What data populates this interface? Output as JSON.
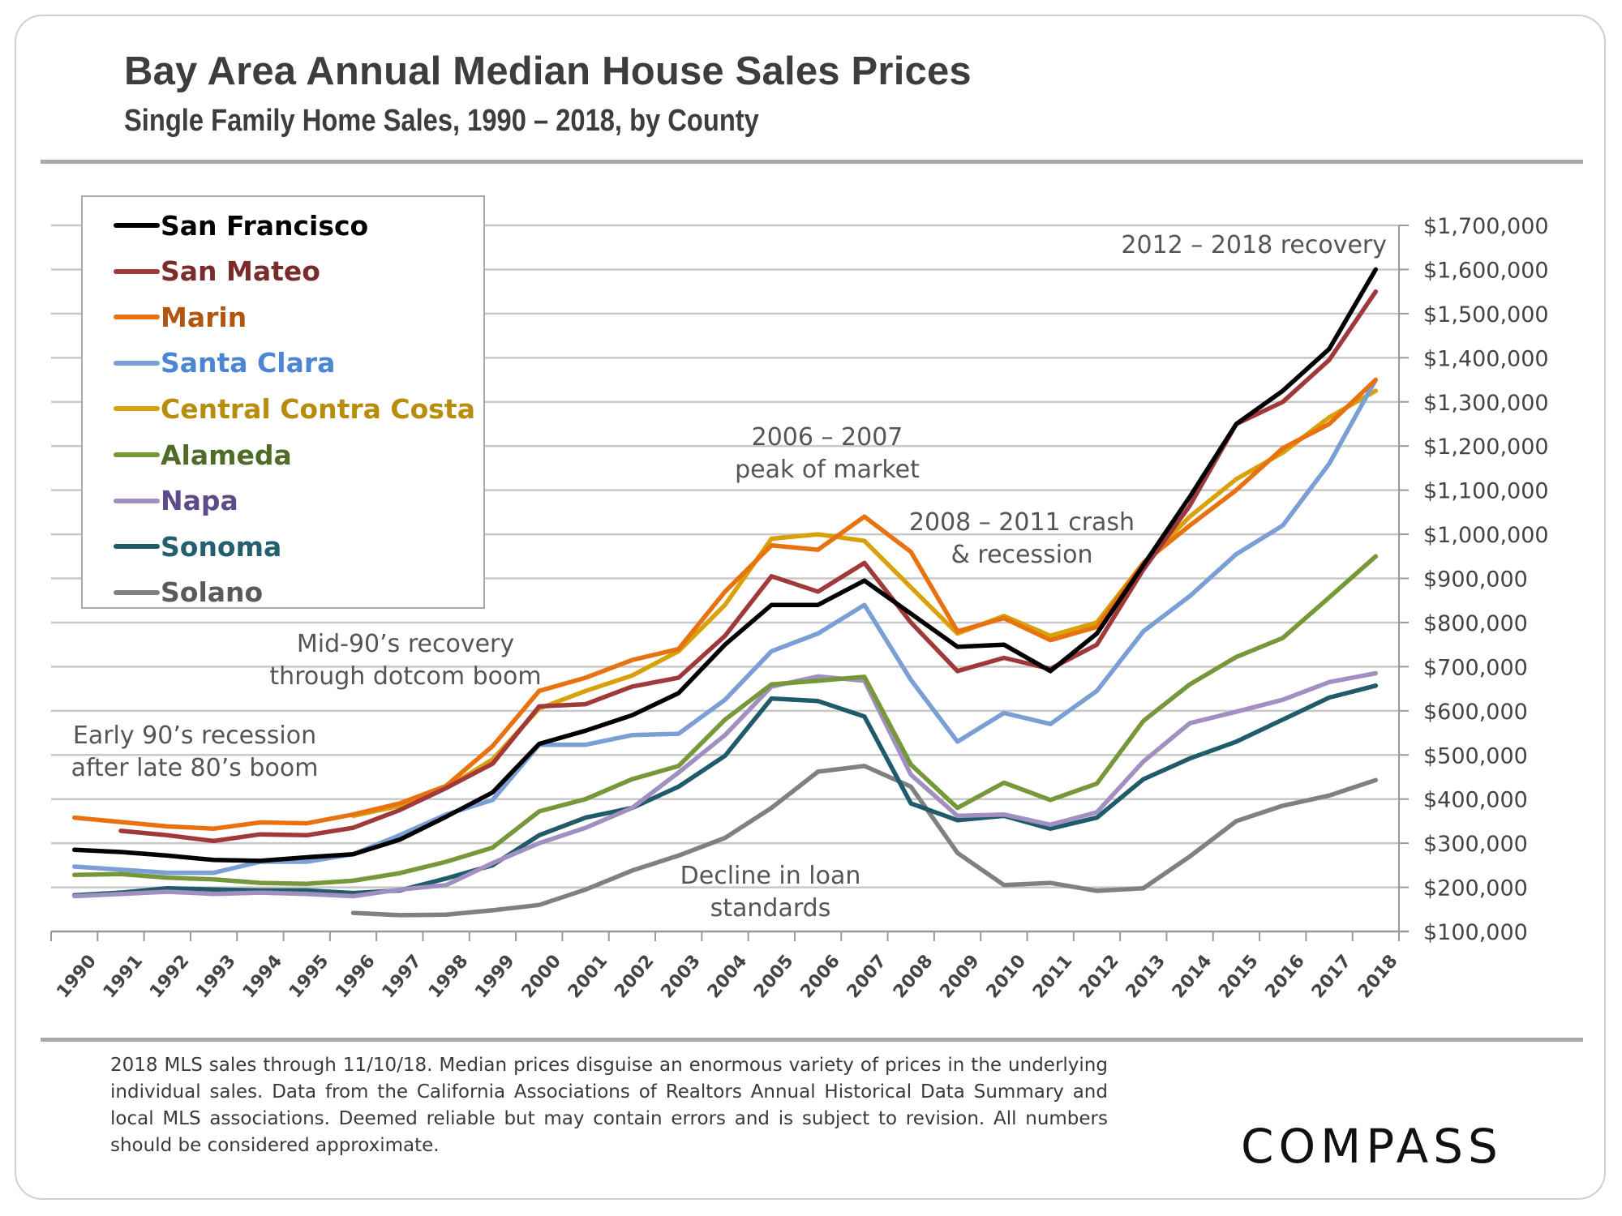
{
  "header": {
    "title": "Bay Area Annual Median House Sales Prices",
    "subtitle": "Single Family Home Sales, 1990 – 2018, by County"
  },
  "annotations": {
    "early90s_line1": "Early 90’s recession",
    "early90s_line2": "after late 80’s boom",
    "mid90s_line1": "Mid-90’s recovery",
    "mid90s_line2": "through dotcom boom",
    "peak_line1": "2006 – 2007",
    "peak_line2": "peak of market",
    "crash_line1": "2008 – 2011 crash",
    "crash_line2": "& recession",
    "loan_line1": "Decline in loan",
    "loan_line2": "standards",
    "recovery": "2012 – 2018 recovery"
  },
  "footer": {
    "note": "2018 MLS sales through 11/10/18. Median prices disguise an enormous variety of prices in the underlying individual sales. Data from the California Associations of Realtors Annual Historical Data Summary and local MLS associations.  Deemed reliable but may contain errors and is subject to revision. All numbers should be considered approximate.",
    "logo": "COMPASS"
  },
  "chart_data": {
    "type": "line",
    "title": "Bay Area Annual Median House Sales Prices",
    "subtitle": "Single Family Home Sales, 1990 – 2018, by County",
    "xlabel": "",
    "ylabel": "",
    "y_axis_side": "right",
    "ylim": [
      100000,
      1700000
    ],
    "y_ticks": [
      100000,
      200000,
      300000,
      400000,
      500000,
      600000,
      700000,
      800000,
      900000,
      1000000,
      1100000,
      1200000,
      1300000,
      1400000,
      1500000,
      1600000,
      1700000
    ],
    "y_tick_labels": [
      "$100,000",
      "$200,000",
      "$300,000",
      "$400,000",
      "$500,000",
      "$600,000",
      "$700,000",
      "$800,000",
      "$900,000",
      "$1,000,000",
      "$1,100,000",
      "$1,200,000",
      "$1,300,000",
      "$1,400,000",
      "$1,500,000",
      "$1,600,000",
      "$1,700,000"
    ],
    "grid": true,
    "legend_position": "top-left",
    "categories": [
      "1990",
      "1991",
      "1992",
      "1993",
      "1994",
      "1995",
      "1996",
      "1997",
      "1998",
      "1999",
      "2000",
      "2001",
      "2002",
      "2003",
      "2004",
      "2005",
      "2006",
      "2007",
      "2008",
      "2009",
      "2010",
      "2011",
      "2012",
      "2013",
      "2014",
      "2015",
      "2016",
      "2017",
      "2018"
    ],
    "series": [
      {
        "name": "San Francisco",
        "color": "#000000",
        "label_color": "#000000",
        "values": [
          285000,
          280000,
          272000,
          262000,
          260000,
          268000,
          275000,
          308000,
          360000,
          415000,
          525000,
          555000,
          590000,
          640000,
          750000,
          840000,
          840000,
          895000,
          820000,
          745000,
          750000,
          690000,
          775000,
          930000,
          1085000,
          1250000,
          1325000,
          1420000,
          1600000
        ]
      },
      {
        "name": "San Mateo",
        "color": "#a0393a",
        "label_color": "#7a2b2b",
        "values": [
          null,
          328000,
          318000,
          305000,
          320000,
          318000,
          335000,
          375000,
          425000,
          480000,
          610000,
          615000,
          655000,
          675000,
          770000,
          905000,
          870000,
          935000,
          800000,
          690000,
          720000,
          695000,
          750000,
          920000,
          1065000,
          1250000,
          1300000,
          1395000,
          1550000
        ]
      },
      {
        "name": "Marin",
        "color": "#e8720f",
        "label_color": "#b0560e",
        "values": [
          358000,
          348000,
          338000,
          333000,
          347000,
          345000,
          365000,
          390000,
          430000,
          520000,
          645000,
          675000,
          715000,
          740000,
          870000,
          975000,
          965000,
          1040000,
          960000,
          780000,
          810000,
          760000,
          790000,
          935000,
          1020000,
          1100000,
          1195000,
          1250000,
          1350000
        ]
      },
      {
        "name": "Santa Clara",
        "color": "#7a9fd4",
        "label_color": "#4a86d4",
        "values": [
          247000,
          240000,
          233000,
          233000,
          258000,
          258000,
          275000,
          318000,
          365000,
          398000,
          523000,
          523000,
          545000,
          548000,
          625000,
          735000,
          775000,
          840000,
          670000,
          530000,
          595000,
          570000,
          645000,
          780000,
          860000,
          955000,
          1020000,
          1160000,
          1350000
        ]
      },
      {
        "name": "Central Contra Costa",
        "color": "#d9a108",
        "label_color": "#b88d0c",
        "values": [
          null,
          null,
          null,
          null,
          null,
          null,
          362000,
          385000,
          425000,
          490000,
          605000,
          645000,
          680000,
          735000,
          840000,
          990000,
          1000000,
          985000,
          880000,
          775000,
          815000,
          770000,
          800000,
          935000,
          1040000,
          1125000,
          1185000,
          1265000,
          1325000
        ]
      },
      {
        "name": "Alameda",
        "color": "#76973a",
        "label_color": "#4e6b28",
        "values": [
          228000,
          230000,
          222000,
          218000,
          210000,
          208000,
          215000,
          232000,
          258000,
          290000,
          372000,
          400000,
          445000,
          475000,
          580000,
          660000,
          668000,
          677000,
          478000,
          380000,
          437000,
          398000,
          435000,
          577000,
          660000,
          722000,
          765000,
          857000,
          950000
        ]
      },
      {
        "name": "Napa",
        "color": "#a08fc0",
        "label_color": "#5e4a8a",
        "values": [
          180000,
          185000,
          190000,
          185000,
          188000,
          185000,
          180000,
          195000,
          205000,
          255000,
          300000,
          335000,
          380000,
          460000,
          545000,
          655000,
          678000,
          668000,
          455000,
          362000,
          365000,
          342000,
          370000,
          485000,
          572000,
          598000,
          625000,
          665000,
          685000
        ]
      },
      {
        "name": "Sonoma",
        "color": "#1f5b6a",
        "label_color": "#22606e",
        "values": [
          182000,
          188000,
          198000,
          195000,
          193000,
          193000,
          187000,
          193000,
          220000,
          250000,
          318000,
          358000,
          380000,
          428000,
          498000,
          628000,
          622000,
          587000,
          390000,
          352000,
          362000,
          333000,
          358000,
          445000,
          492000,
          530000,
          580000,
          630000,
          657000
        ]
      },
      {
        "name": "Solano",
        "color": "#808080",
        "label_color": "#5a5a5a",
        "values": [
          null,
          null,
          null,
          null,
          null,
          null,
          142000,
          137000,
          138000,
          148000,
          160000,
          195000,
          238000,
          272000,
          312000,
          380000,
          462000,
          475000,
          428000,
          278000,
          205000,
          210000,
          192000,
          198000,
          270000,
          350000,
          385000,
          408000,
          443000
        ]
      }
    ]
  }
}
